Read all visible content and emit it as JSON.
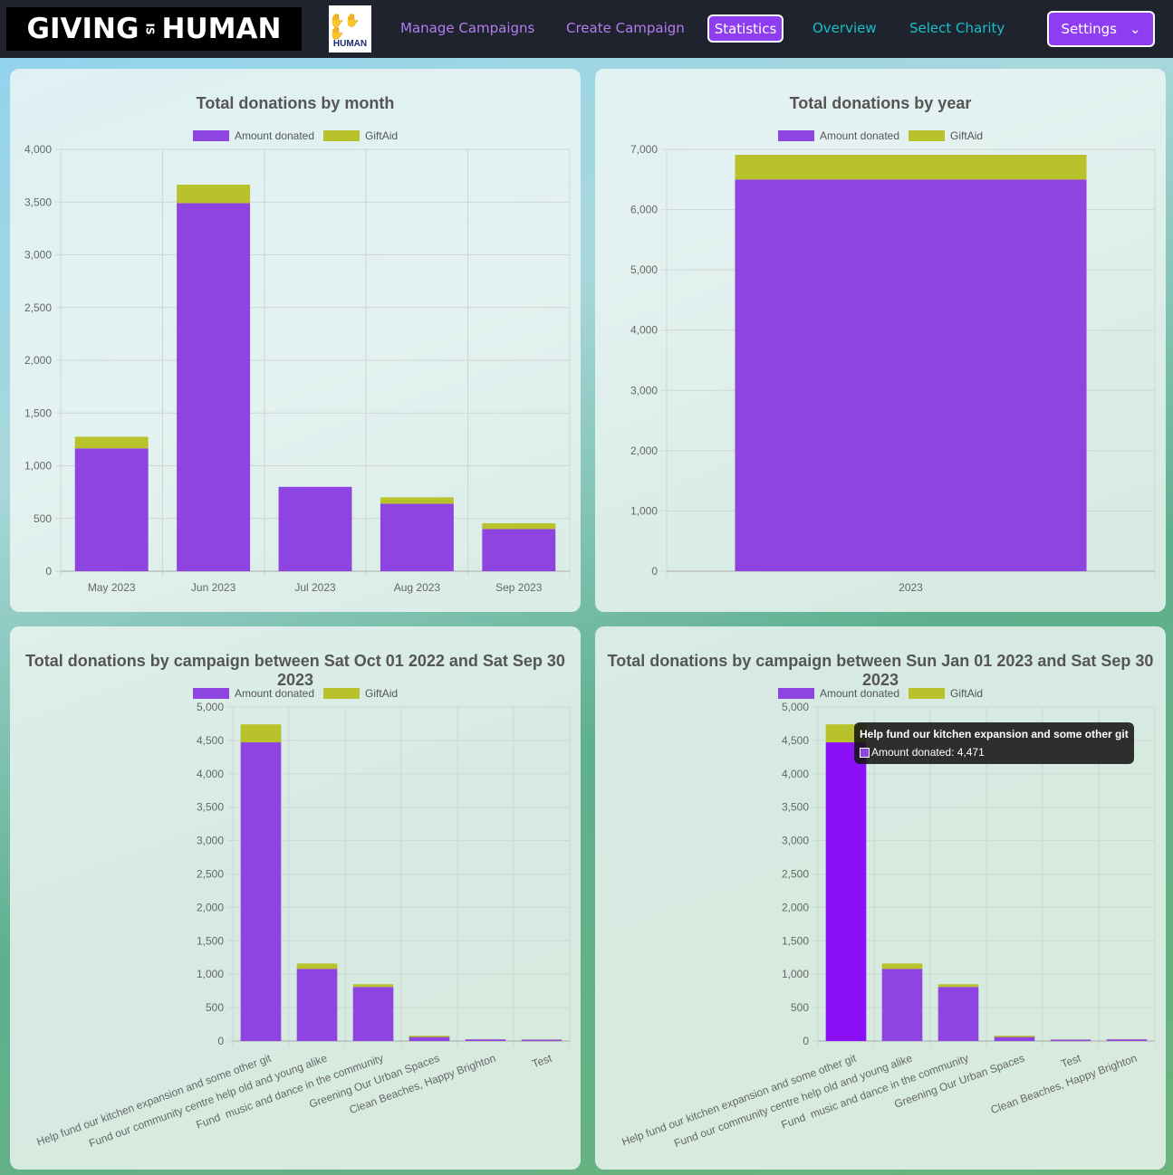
{
  "nav": {
    "logo_text": "GIVING IS HUMAN",
    "logo_left": "GIVING",
    "logo_mid": "IS",
    "logo_right": "HUMAN",
    "charity_logo_text": "HUMAN",
    "items": [
      {
        "label": "Manage Campaigns",
        "color": "#b57cf0"
      },
      {
        "label": "Create Campaign",
        "color": "#b57cf0"
      },
      {
        "label": "Overview",
        "color": "#19c0c8"
      },
      {
        "label": "Select Charity",
        "color": "#19c0c8"
      }
    ],
    "active": "Statistics",
    "settings": "Settings"
  },
  "colors": {
    "amount": "#8e44e0",
    "giftaid": "#b8c22a",
    "highlight": "#8b10f8"
  },
  "legend": {
    "amount": "Amount donated",
    "giftaid": "GiftAid"
  },
  "tooltip": {
    "title": "Help fund our kitchen expansion and some other git",
    "line": "Amount donated: 4,471"
  },
  "chart_data": [
    {
      "type": "bar",
      "stacked": true,
      "title": "Total donations by month",
      "categories": [
        "May 2023",
        "Jun 2023",
        "Jul 2023",
        "Aug 2023",
        "Sep 2023"
      ],
      "series": [
        {
          "name": "Amount donated",
          "values": [
            1165,
            3490,
            800,
            640,
            400
          ]
        },
        {
          "name": "GiftAid",
          "values": [
            110,
            175,
            0,
            60,
            55
          ]
        }
      ],
      "ylim": [
        0,
        4000
      ],
      "yticks": [
        0,
        500,
        1000,
        1500,
        2000,
        2500,
        3000,
        3500,
        4000
      ],
      "legend": "top"
    },
    {
      "type": "bar",
      "stacked": true,
      "title": "Total donations by year",
      "categories": [
        "2023"
      ],
      "series": [
        {
          "name": "Amount donated",
          "values": [
            6500
          ]
        },
        {
          "name": "GiftAid",
          "values": [
            410
          ]
        }
      ],
      "ylim": [
        0,
        7000
      ],
      "yticks": [
        0,
        1000,
        2000,
        3000,
        4000,
        5000,
        6000,
        7000
      ],
      "legend": "top"
    },
    {
      "type": "bar",
      "stacked": true,
      "title": "Total donations by campaign between Sat Oct 01 2022 and Sat Sep 30 2023",
      "categories": [
        "Help fund our kitchen expansion and some other git",
        "Fund our community centre help old and young alike",
        "Fund  music and dance in the community",
        "Greening Our Urban Spaces",
        "Clean Beaches, Happy Brighton",
        "Test"
      ],
      "series": [
        {
          "name": "Amount donated",
          "values": [
            4471,
            1080,
            810,
            60,
            25,
            20
          ]
        },
        {
          "name": "GiftAid",
          "values": [
            269,
            80,
            40,
            20,
            3,
            3
          ]
        }
      ],
      "ylim": [
        0,
        5000
      ],
      "yticks": [
        0,
        500,
        1000,
        1500,
        2000,
        2500,
        3000,
        3500,
        4000,
        4500,
        5000
      ],
      "legend": "top"
    },
    {
      "type": "bar",
      "stacked": true,
      "title": "Total donations by campaign between Sun Jan 01 2023 and Sat Sep 30 2023",
      "categories": [
        "Help fund our kitchen expansion and some other git",
        "Fund our community centre help old and young alike",
        "Fund  music and dance in the community",
        "Greening Our Urban Spaces",
        "Test",
        "Clean Beaches, Happy Brighton"
      ],
      "series": [
        {
          "name": "Amount donated",
          "values": [
            4471,
            1080,
            810,
            60,
            20,
            25
          ]
        },
        {
          "name": "GiftAid",
          "values": [
            269,
            80,
            40,
            20,
            3,
            3
          ]
        }
      ],
      "ylim": [
        0,
        5000
      ],
      "yticks": [
        0,
        500,
        1000,
        1500,
        2000,
        2500,
        3000,
        3500,
        4000,
        4500,
        5000
      ],
      "legend": "top",
      "highlighted_index": 0
    }
  ]
}
